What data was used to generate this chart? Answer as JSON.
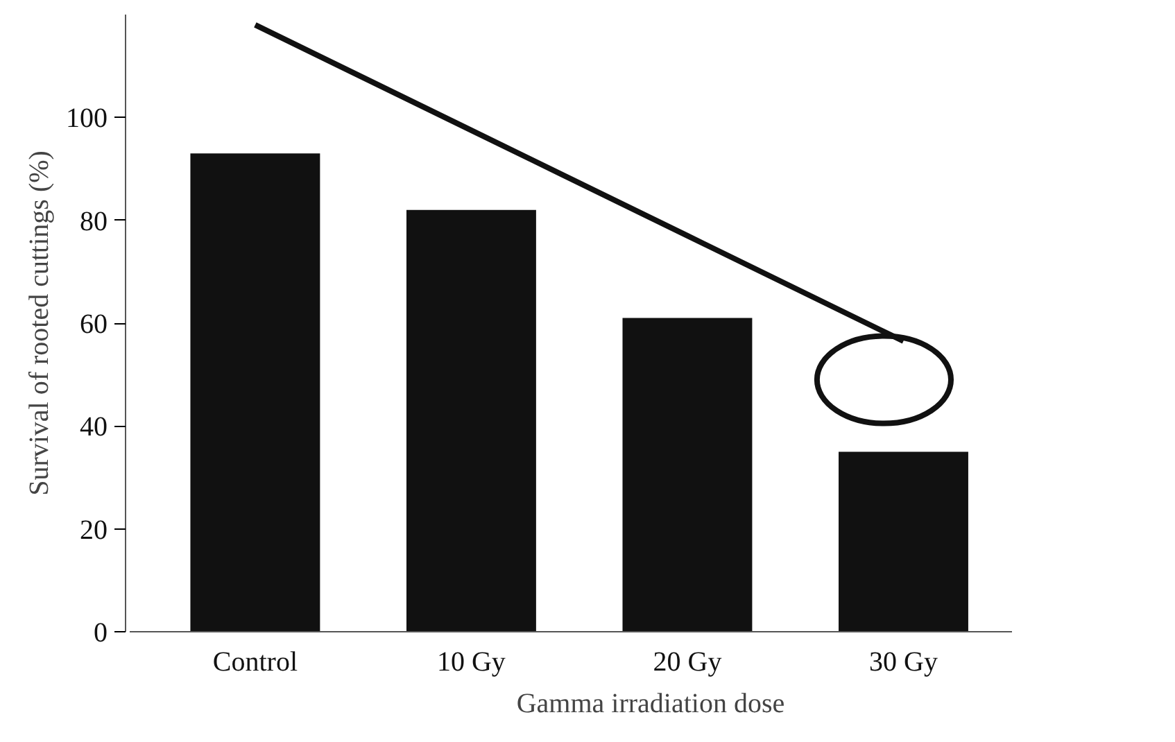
{
  "chart_data": {
    "type": "bar",
    "xlabel": "Gamma irradiation dose",
    "ylabel": "Survival of rooted cuttings (%)",
    "categories": [
      "Control",
      "10 Gy",
      "20 Gy",
      "30 Gy"
    ],
    "series": [
      {
        "color": "#111111",
        "values": [
          93,
          82,
          61,
          35
        ]
      },
      {
        "type": "line",
        "color": "#111111",
        "values": [
          118,
          97.5,
          77,
          56.5
        ]
      }
    ],
    "ylim": [
      0,
      120
    ],
    "yticks": [
      0,
      20,
      40,
      60,
      80,
      100
    ],
    "grid": false
  }
}
